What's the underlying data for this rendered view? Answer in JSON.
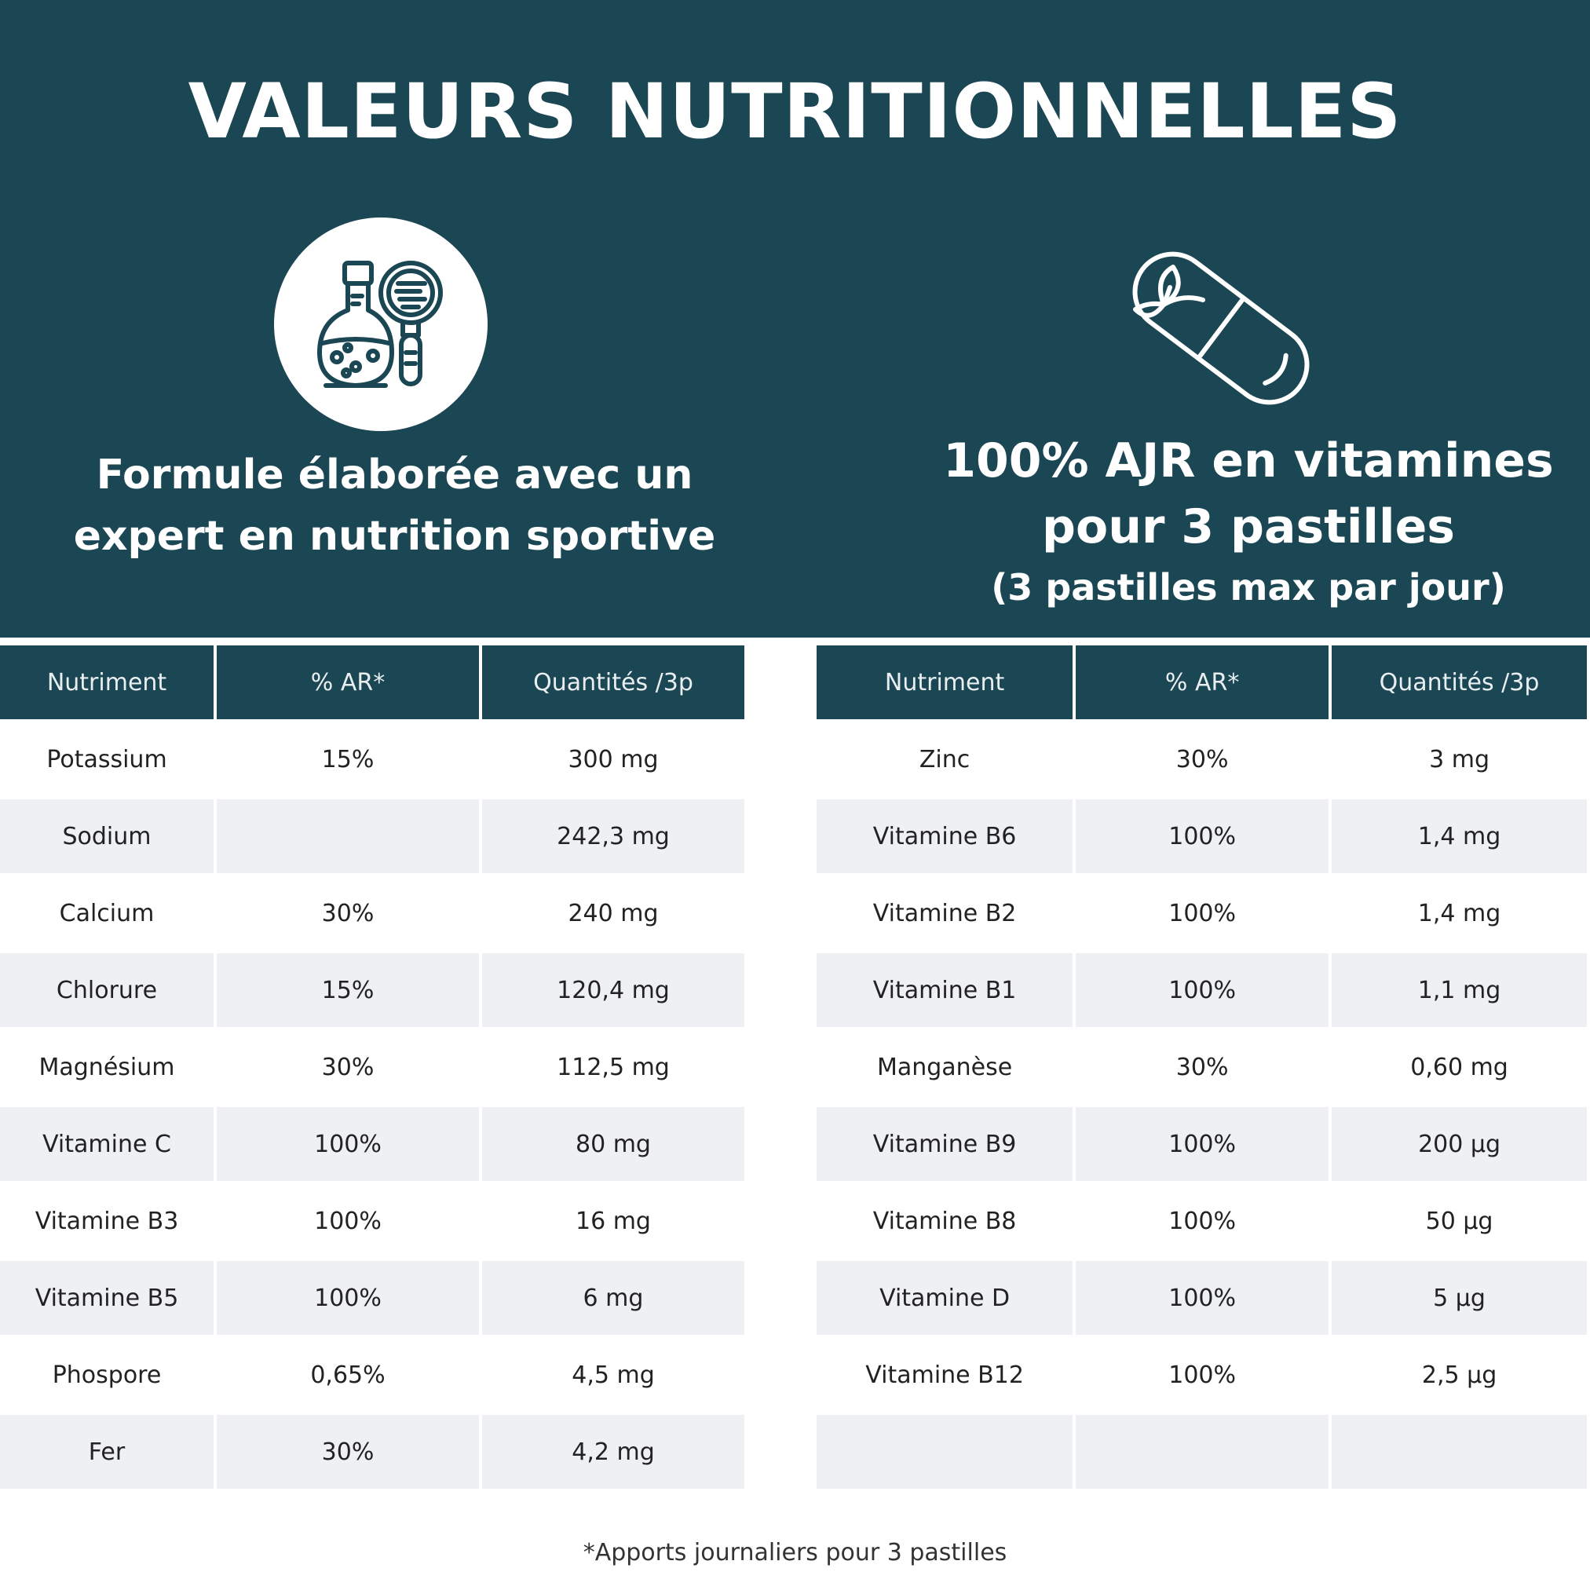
{
  "title": "VALEURS NUTRITIONNELLES",
  "features": {
    "left": {
      "icon": "flask-magnifier-icon",
      "line1": "Formule élaborée avec un",
      "line2": "expert en nutrition sportive"
    },
    "right": {
      "icon": "capsule-leaf-icon",
      "line1": "100% AJR en vitamines",
      "line2": "pour 3 pastilles",
      "sub": "(3 pastilles max par jour)"
    }
  },
  "colors": {
    "banner": "#1b4653",
    "row_alt": "#eef0f3",
    "header_text": "#e9eff1"
  },
  "table_headers": [
    "Nutriment",
    "% AR*",
    "Quantités /3p"
  ],
  "left_table": [
    [
      "Potassium",
      "15%",
      "300 mg"
    ],
    [
      "Sodium",
      "",
      "242,3 mg"
    ],
    [
      "Calcium",
      "30%",
      "240 mg"
    ],
    [
      "Chlorure",
      "15%",
      "120,4 mg"
    ],
    [
      "Magnésium",
      "30%",
      "112,5 mg"
    ],
    [
      "Vitamine C",
      "100%",
      "80 mg"
    ],
    [
      "Vitamine B3",
      "100%",
      "16 mg"
    ],
    [
      "Vitamine B5",
      "100%",
      "6 mg"
    ],
    [
      "Phospore",
      "0,65%",
      "4,5 mg"
    ],
    [
      "Fer",
      "30%",
      "4,2 mg"
    ]
  ],
  "right_table": [
    [
      "Zinc",
      "30%",
      "3 mg"
    ],
    [
      "Vitamine B6",
      "100%",
      "1,4 mg"
    ],
    [
      "Vitamine B2",
      "100%",
      "1,4 mg"
    ],
    [
      "Vitamine B1",
      "100%",
      "1,1 mg"
    ],
    [
      "Manganèse",
      "30%",
      "0,60 mg"
    ],
    [
      "Vitamine B9",
      "100%",
      "200 µg"
    ],
    [
      "Vitamine B8",
      "100%",
      "50 µg"
    ],
    [
      "Vitamine D",
      "100%",
      "5 µg"
    ],
    [
      "Vitamine B12",
      "100%",
      "2,5 µg"
    ],
    [
      "",
      "",
      ""
    ]
  ],
  "footnote": "*Apports journaliers pour 3 pastilles"
}
